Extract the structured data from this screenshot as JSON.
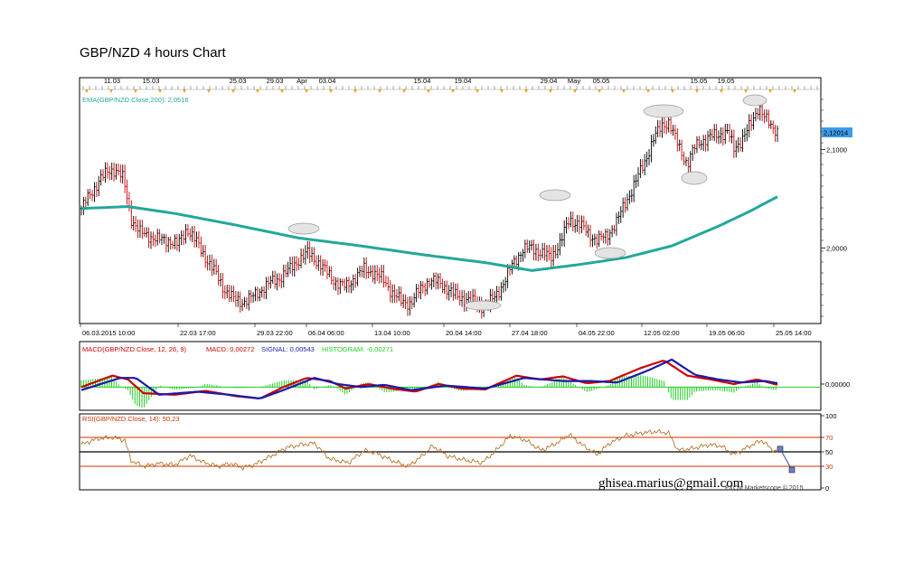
{
  "page": {
    "title": "GBP/NZD 4 hours Chart",
    "credit": "ghisea.marius@gmail.com",
    "watermark": "FXCM Marketscope © 2015"
  },
  "colors": {
    "price_bar_up": "#000000",
    "price_bar_down": "#cc0000",
    "ema": "#22a89a",
    "macd": "#cc0000",
    "signal": "#1a1aaa",
    "histogram": "#22cc22",
    "rsi": "#b8742a",
    "rsi_levels": "#cc3300",
    "last_price_box": "#3d9be9"
  },
  "chart_data": [
    {
      "type": "line",
      "panel": "price",
      "indicator_label": "EMA(GBP/NZD.Close,200): 2,0516",
      "last_price_label": "2,12014",
      "y_tick_labels": [
        "2,1000",
        "2,0000"
      ],
      "y_ticks": [
        2.1,
        2.0
      ],
      "ylim": [
        1.925,
        2.16
      ],
      "top_axis_labels": [
        "11.03",
        "15.03",
        "25.03",
        "29.03",
        "Apr",
        "03.04",
        "15.04",
        "19.04",
        "29.04",
        "May",
        "05.05",
        "15.05",
        "19.05"
      ],
      "bottom_axis_labels": [
        "06.03.2015 10:00",
        "22.03 17:00",
        "29.03 22:00",
        "06.04 06:00",
        "13.04 10:00",
        "20.04 14:00",
        "27.04 18:00",
        "04.05 22:00",
        "12.05 02:00",
        "19.05 06:00",
        "25.05 14:00"
      ],
      "price_series": [
        {
          "t": 0,
          "v": 2.04
        },
        {
          "t": 6,
          "v": 2.055
        },
        {
          "t": 12,
          "v": 2.07
        },
        {
          "t": 18,
          "v": 2.078
        },
        {
          "t": 22,
          "v": 2.08
        },
        {
          "t": 27,
          "v": 2.07
        },
        {
          "t": 32,
          "v": 2.03
        },
        {
          "t": 38,
          "v": 2.015
        },
        {
          "t": 44,
          "v": 2.012
        },
        {
          "t": 50,
          "v": 2.008
        },
        {
          "t": 56,
          "v": 2.008
        },
        {
          "t": 62,
          "v": 2.003
        },
        {
          "t": 68,
          "v": 2.02
        },
        {
          "t": 74,
          "v": 2.006
        },
        {
          "t": 80,
          "v": 1.99
        },
        {
          "t": 86,
          "v": 1.975
        },
        {
          "t": 92,
          "v": 1.958
        },
        {
          "t": 98,
          "v": 1.948
        },
        {
          "t": 104,
          "v": 1.945
        },
        {
          "t": 110,
          "v": 1.95
        },
        {
          "t": 116,
          "v": 1.958
        },
        {
          "t": 122,
          "v": 1.965
        },
        {
          "t": 128,
          "v": 1.97
        },
        {
          "t": 134,
          "v": 1.978
        },
        {
          "t": 140,
          "v": 1.988
        },
        {
          "t": 146,
          "v": 1.995
        },
        {
          "t": 152,
          "v": 1.986
        },
        {
          "t": 158,
          "v": 1.975
        },
        {
          "t": 164,
          "v": 1.965
        },
        {
          "t": 170,
          "v": 1.96
        },
        {
          "t": 176,
          "v": 1.97
        },
        {
          "t": 182,
          "v": 1.978
        },
        {
          "t": 188,
          "v": 1.975
        },
        {
          "t": 194,
          "v": 1.968
        },
        {
          "t": 200,
          "v": 1.955
        },
        {
          "t": 206,
          "v": 1.945
        },
        {
          "t": 212,
          "v": 1.944
        },
        {
          "t": 218,
          "v": 1.958
        },
        {
          "t": 224,
          "v": 1.967
        },
        {
          "t": 230,
          "v": 1.965
        },
        {
          "t": 236,
          "v": 1.958
        },
        {
          "t": 242,
          "v": 1.95
        },
        {
          "t": 248,
          "v": 1.948
        },
        {
          "t": 254,
          "v": 1.943
        },
        {
          "t": 260,
          "v": 1.94
        },
        {
          "t": 266,
          "v": 1.95
        },
        {
          "t": 272,
          "v": 1.965
        },
        {
          "t": 278,
          "v": 1.985
        },
        {
          "t": 284,
          "v": 1.998
        },
        {
          "t": 290,
          "v": 2.0
        },
        {
          "t": 296,
          "v": 1.995
        },
        {
          "t": 302,
          "v": 1.99
        },
        {
          "t": 308,
          "v": 2.005
        },
        {
          "t": 314,
          "v": 2.028
        },
        {
          "t": 320,
          "v": 2.025
        },
        {
          "t": 326,
          "v": 2.015
        },
        {
          "t": 332,
          "v": 2.008
        },
        {
          "t": 338,
          "v": 2.012
        },
        {
          "t": 344,
          "v": 2.025
        },
        {
          "t": 350,
          "v": 2.045
        },
        {
          "t": 356,
          "v": 2.065
        },
        {
          "t": 362,
          "v": 2.085
        },
        {
          "t": 368,
          "v": 2.11
        },
        {
          "t": 374,
          "v": 2.125
        },
        {
          "t": 378,
          "v": 2.128
        },
        {
          "t": 382,
          "v": 2.112
        },
        {
          "t": 386,
          "v": 2.098
        },
        {
          "t": 390,
          "v": 2.085
        },
        {
          "t": 394,
          "v": 2.1
        },
        {
          "t": 398,
          "v": 2.108
        },
        {
          "t": 404,
          "v": 2.112
        },
        {
          "t": 410,
          "v": 2.115
        },
        {
          "t": 416,
          "v": 2.118
        },
        {
          "t": 420,
          "v": 2.1
        },
        {
          "t": 424,
          "v": 2.108
        },
        {
          "t": 428,
          "v": 2.118
        },
        {
          "t": 432,
          "v": 2.128
        },
        {
          "t": 436,
          "v": 2.145
        },
        {
          "t": 440,
          "v": 2.132
        },
        {
          "t": 444,
          "v": 2.122
        },
        {
          "t": 448,
          "v": 2.12
        }
      ],
      "ema_series": [
        {
          "t": 0,
          "v": 2.04
        },
        {
          "t": 30,
          "v": 2.042
        },
        {
          "t": 60,
          "v": 2.035
        },
        {
          "t": 100,
          "v": 2.023
        },
        {
          "t": 140,
          "v": 2.01
        },
        {
          "t": 180,
          "v": 2.002
        },
        {
          "t": 220,
          "v": 1.993
        },
        {
          "t": 260,
          "v": 1.985
        },
        {
          "t": 290,
          "v": 1.977
        },
        {
          "t": 320,
          "v": 1.983
        },
        {
          "t": 350,
          "v": 1.99
        },
        {
          "t": 380,
          "v": 2.002
        },
        {
          "t": 410,
          "v": 2.022
        },
        {
          "t": 430,
          "v": 2.037
        },
        {
          "t": 448,
          "v": 2.052
        }
      ]
    },
    {
      "type": "line",
      "panel": "macd",
      "indicator_label": "MACD(GBP/NZD.Close, 12, 26, 9)",
      "macd_label": "MACD: 0,00272",
      "signal_label": "SIGNAL: 0,00543",
      "histogram_label": "HISTOGRAM: -0,00271",
      "y_tick_labels": [
        "0,00000"
      ],
      "ylim": [
        -0.028,
        0.043
      ],
      "series": [
        {
          "name": "MACD",
          "points": [
            {
              "t": 0,
              "v": 0.0
            },
            {
              "t": 20,
              "v": 0.015
            },
            {
              "t": 30,
              "v": 0.01
            },
            {
              "t": 40,
              "v": -0.008
            },
            {
              "t": 60,
              "v": -0.01
            },
            {
              "t": 80,
              "v": -0.005
            },
            {
              "t": 100,
              "v": -0.012
            },
            {
              "t": 115,
              "v": -0.015
            },
            {
              "t": 130,
              "v": 0.0
            },
            {
              "t": 145,
              "v": 0.012
            },
            {
              "t": 160,
              "v": 0.008
            },
            {
              "t": 170,
              "v": -0.002
            },
            {
              "t": 185,
              "v": 0.004
            },
            {
              "t": 200,
              "v": -0.002
            },
            {
              "t": 215,
              "v": -0.006
            },
            {
              "t": 230,
              "v": 0.004
            },
            {
              "t": 245,
              "v": -0.002
            },
            {
              "t": 260,
              "v": -0.003
            },
            {
              "t": 280,
              "v": 0.015
            },
            {
              "t": 295,
              "v": 0.01
            },
            {
              "t": 310,
              "v": 0.014
            },
            {
              "t": 325,
              "v": 0.005
            },
            {
              "t": 340,
              "v": 0.008
            },
            {
              "t": 360,
              "v": 0.025
            },
            {
              "t": 375,
              "v": 0.035
            },
            {
              "t": 390,
              "v": 0.015
            },
            {
              "t": 405,
              "v": 0.01
            },
            {
              "t": 420,
              "v": 0.004
            },
            {
              "t": 435,
              "v": 0.01
            },
            {
              "t": 448,
              "v": 0.003
            }
          ]
        },
        {
          "name": "SIGNAL",
          "points": [
            {
              "t": 0,
              "v": -0.004
            },
            {
              "t": 25,
              "v": 0.012
            },
            {
              "t": 35,
              "v": 0.012
            },
            {
              "t": 50,
              "v": -0.01
            },
            {
              "t": 75,
              "v": -0.006
            },
            {
              "t": 95,
              "v": -0.01
            },
            {
              "t": 115,
              "v": -0.015
            },
            {
              "t": 130,
              "v": -0.004
            },
            {
              "t": 150,
              "v": 0.012
            },
            {
              "t": 165,
              "v": 0.004
            },
            {
              "t": 180,
              "v": 0.0
            },
            {
              "t": 195,
              "v": 0.003
            },
            {
              "t": 212,
              "v": -0.004
            },
            {
              "t": 235,
              "v": 0.002
            },
            {
              "t": 260,
              "v": -0.002
            },
            {
              "t": 285,
              "v": 0.012
            },
            {
              "t": 310,
              "v": 0.008
            },
            {
              "t": 328,
              "v": 0.008
            },
            {
              "t": 345,
              "v": 0.006
            },
            {
              "t": 365,
              "v": 0.022
            },
            {
              "t": 380,
              "v": 0.036
            },
            {
              "t": 395,
              "v": 0.016
            },
            {
              "t": 410,
              "v": 0.01
            },
            {
              "t": 425,
              "v": 0.006
            },
            {
              "t": 440,
              "v": 0.008
            },
            {
              "t": 448,
              "v": 0.005
            }
          ]
        }
      ]
    },
    {
      "type": "line",
      "panel": "rsi",
      "indicator_label": "RSI(GBP/NZD.Close, 14): 50,23",
      "y_tick_labels": [
        "100",
        "70",
        "50",
        "30",
        "0"
      ],
      "levels": [
        70,
        50,
        30
      ],
      "ylim": [
        0,
        100
      ],
      "series": [
        {
          "name": "RSI",
          "points": [
            {
              "t": 0,
              "v": 60
            },
            {
              "t": 10,
              "v": 68
            },
            {
              "t": 20,
              "v": 70
            },
            {
              "t": 28,
              "v": 66
            },
            {
              "t": 32,
              "v": 38
            },
            {
              "t": 40,
              "v": 30
            },
            {
              "t": 50,
              "v": 34
            },
            {
              "t": 60,
              "v": 32
            },
            {
              "t": 70,
              "v": 45
            },
            {
              "t": 78,
              "v": 36
            },
            {
              "t": 88,
              "v": 30
            },
            {
              "t": 96,
              "v": 34
            },
            {
              "t": 104,
              "v": 28
            },
            {
              "t": 112,
              "v": 33
            },
            {
              "t": 122,
              "v": 44
            },
            {
              "t": 132,
              "v": 56
            },
            {
              "t": 142,
              "v": 60
            },
            {
              "t": 150,
              "v": 62
            },
            {
              "t": 160,
              "v": 40
            },
            {
              "t": 172,
              "v": 35
            },
            {
              "t": 182,
              "v": 52
            },
            {
              "t": 190,
              "v": 48
            },
            {
              "t": 200,
              "v": 38
            },
            {
              "t": 210,
              "v": 30
            },
            {
              "t": 218,
              "v": 42
            },
            {
              "t": 226,
              "v": 58
            },
            {
              "t": 236,
              "v": 44
            },
            {
              "t": 248,
              "v": 38
            },
            {
              "t": 258,
              "v": 35
            },
            {
              "t": 266,
              "v": 50
            },
            {
              "t": 276,
              "v": 72
            },
            {
              "t": 286,
              "v": 66
            },
            {
              "t": 296,
              "v": 52
            },
            {
              "t": 306,
              "v": 62
            },
            {
              "t": 314,
              "v": 74
            },
            {
              "t": 322,
              "v": 60
            },
            {
              "t": 332,
              "v": 46
            },
            {
              "t": 340,
              "v": 62
            },
            {
              "t": 350,
              "v": 72
            },
            {
              "t": 360,
              "v": 76
            },
            {
              "t": 370,
              "v": 78
            },
            {
              "t": 378,
              "v": 76
            },
            {
              "t": 384,
              "v": 52
            },
            {
              "t": 394,
              "v": 55
            },
            {
              "t": 404,
              "v": 60
            },
            {
              "t": 412,
              "v": 58
            },
            {
              "t": 420,
              "v": 46
            },
            {
              "t": 430,
              "v": 58
            },
            {
              "t": 438,
              "v": 66
            },
            {
              "t": 444,
              "v": 54
            },
            {
              "t": 448,
              "v": 50
            }
          ]
        }
      ]
    }
  ]
}
